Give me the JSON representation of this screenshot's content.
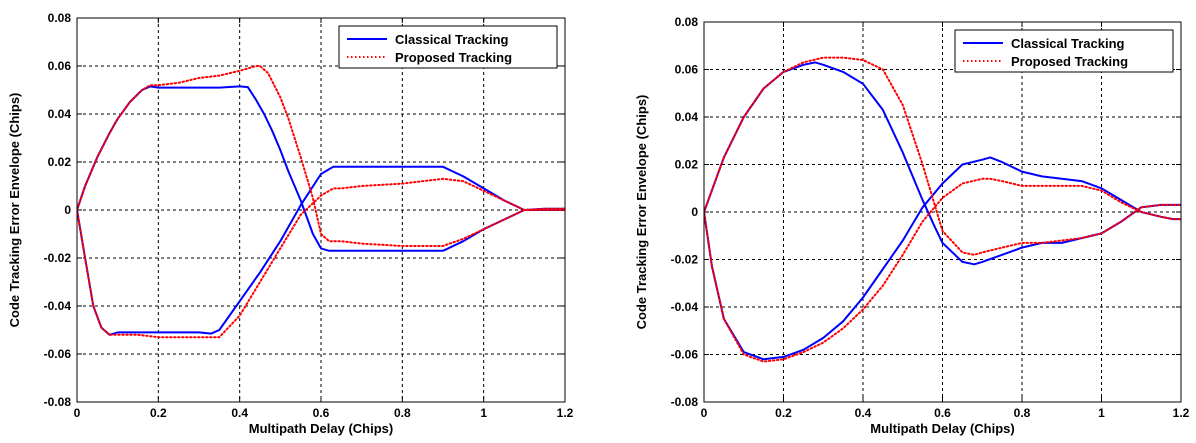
{
  "chart_data": [
    {
      "type": "line",
      "title": "",
      "xlabel": "Multipath Delay (Chips)",
      "ylabel": "Code Tracking Error Envelope (Chips)",
      "xlim": [
        0,
        1.2
      ],
      "ylim": [
        -0.08,
        0.08
      ],
      "xticks": [
        0,
        0.2,
        0.4,
        0.6,
        0.8,
        1,
        1.2
      ],
      "yticks": [
        -0.08,
        -0.06,
        -0.04,
        -0.02,
        0,
        0.02,
        0.04,
        0.06,
        0.08
      ],
      "xtick_labels": [
        "0",
        "0.2",
        "0.4",
        "0.6",
        "0.8",
        "1",
        "1.2"
      ],
      "ytick_labels": [
        "-0.08",
        "-0.06",
        "-0.04",
        "-0.02",
        "0",
        "0.02",
        "0.04",
        "0.06",
        "0.08"
      ],
      "grid": true,
      "legend_position": "top-right",
      "legend": [
        "Classical Tracking",
        "Proposed Tracking"
      ],
      "series": [
        {
          "name": "Classical Tracking",
          "color": "#0000ff",
          "style": "solid",
          "envelope": "upper",
          "x": [
            0,
            0.02,
            0.05,
            0.08,
            0.1,
            0.13,
            0.16,
            0.18,
            0.2,
            0.25,
            0.3,
            0.35,
            0.4,
            0.42,
            0.44,
            0.46,
            0.48,
            0.5,
            0.52,
            0.55,
            0.58,
            0.6,
            0.62,
            0.65,
            0.7,
            0.8,
            0.9,
            0.95,
            1,
            1.05,
            1.1,
            1.15,
            1.2
          ],
          "y": [
            0,
            0.01,
            0.022,
            0.032,
            0.038,
            0.045,
            0.05,
            0.0515,
            0.051,
            0.051,
            0.051,
            0.051,
            0.0515,
            0.0512,
            0.046,
            0.04,
            0.033,
            0.025,
            0.016,
            0.004,
            -0.01,
            -0.016,
            -0.017,
            -0.017,
            -0.017,
            -0.017,
            -0.017,
            -0.013,
            -0.008,
            -0.004,
            0,
            0.0005,
            0.0005
          ]
        },
        {
          "name": "Classical Tracking",
          "color": "#0000ff",
          "style": "solid",
          "envelope": "lower",
          "x": [
            0,
            0.02,
            0.04,
            0.06,
            0.08,
            0.1,
            0.15,
            0.2,
            0.25,
            0.3,
            0.33,
            0.35,
            0.4,
            0.45,
            0.5,
            0.55,
            0.6,
            0.63,
            0.65,
            0.7,
            0.8,
            0.9,
            0.95,
            1,
            1.05,
            1.1,
            1.15,
            1.2
          ],
          "y": [
            0,
            -0.02,
            -0.04,
            -0.049,
            -0.052,
            -0.051,
            -0.051,
            -0.051,
            -0.051,
            -0.051,
            -0.0515,
            -0.05,
            -0.038,
            -0.026,
            -0.013,
            0.002,
            0.015,
            0.018,
            0.018,
            0.018,
            0.018,
            0.018,
            0.014,
            0.009,
            0.004,
            0,
            0,
            0
          ]
        },
        {
          "name": "Proposed Tracking",
          "color": "#ff0000",
          "style": "dotted",
          "envelope": "upper",
          "x": [
            0,
            0.02,
            0.05,
            0.08,
            0.1,
            0.13,
            0.16,
            0.18,
            0.2,
            0.25,
            0.3,
            0.35,
            0.4,
            0.42,
            0.44,
            0.45,
            0.47,
            0.5,
            0.52,
            0.55,
            0.58,
            0.6,
            0.62,
            0.65,
            0.7,
            0.8,
            0.9,
            0.95,
            1,
            1.05,
            1.1,
            1.15,
            1.2
          ],
          "y": [
            0,
            0.01,
            0.022,
            0.032,
            0.038,
            0.045,
            0.05,
            0.052,
            0.052,
            0.053,
            0.055,
            0.056,
            0.058,
            0.059,
            0.06,
            0.06,
            0.057,
            0.047,
            0.038,
            0.022,
            0.005,
            -0.01,
            -0.013,
            -0.013,
            -0.014,
            -0.015,
            -0.015,
            -0.012,
            -0.008,
            -0.004,
            0,
            0.0005,
            0.0005
          ]
        },
        {
          "name": "Proposed Tracking",
          "color": "#ff0000",
          "style": "dotted",
          "envelope": "lower",
          "x": [
            0,
            0.02,
            0.04,
            0.06,
            0.08,
            0.1,
            0.15,
            0.2,
            0.25,
            0.3,
            0.35,
            0.4,
            0.45,
            0.5,
            0.55,
            0.6,
            0.63,
            0.65,
            0.7,
            0.8,
            0.9,
            0.95,
            1,
            1.05,
            1.1,
            1.15,
            1.2
          ],
          "y": [
            0,
            -0.02,
            -0.04,
            -0.049,
            -0.052,
            -0.052,
            -0.052,
            -0.053,
            -0.053,
            -0.053,
            -0.053,
            -0.044,
            -0.03,
            -0.016,
            -0.002,
            0.006,
            0.009,
            0.009,
            0.01,
            0.011,
            0.013,
            0.012,
            0.008,
            0.004,
            0,
            0,
            0
          ]
        }
      ]
    },
    {
      "type": "line",
      "title": "",
      "xlabel": "Multipath Delay (Chips)",
      "ylabel": "Code Tracking Error Envelope (Chips)",
      "xlim": [
        0,
        1.2
      ],
      "ylim": [
        -0.08,
        0.08
      ],
      "xticks": [
        0,
        0.2,
        0.4,
        0.6,
        0.8,
        1,
        1.2
      ],
      "yticks": [
        -0.08,
        -0.06,
        -0.04,
        -0.02,
        0,
        0.02,
        0.04,
        0.06,
        0.08
      ],
      "xtick_labels": [
        "0",
        "0.2",
        "0.4",
        "0.6",
        "0.8",
        "1",
        "1.2"
      ],
      "ytick_labels": [
        "-0.08",
        "-0.06",
        "-0.04",
        "-0.02",
        "0",
        "0.02",
        "0.04",
        "0.06",
        "0.08"
      ],
      "grid": true,
      "legend_position": "top-right",
      "legend": [
        "Classical Tracking",
        "Proposed Tracking"
      ],
      "series": [
        {
          "name": "Classical Tracking",
          "color": "#0000ff",
          "style": "solid",
          "envelope": "upper",
          "x": [
            0,
            0.05,
            0.1,
            0.15,
            0.2,
            0.25,
            0.28,
            0.3,
            0.35,
            0.4,
            0.45,
            0.5,
            0.55,
            0.58,
            0.6,
            0.65,
            0.68,
            0.7,
            0.75,
            0.8,
            0.85,
            0.9,
            0.95,
            1,
            1.05,
            1.1,
            1.15,
            1.2
          ],
          "y": [
            0,
            0.023,
            0.04,
            0.052,
            0.059,
            0.062,
            0.063,
            0.062,
            0.059,
            0.054,
            0.043,
            0.025,
            0.005,
            -0.006,
            -0.013,
            -0.021,
            -0.022,
            -0.021,
            -0.018,
            -0.015,
            -0.013,
            -0.013,
            -0.011,
            -0.009,
            -0.004,
            0.002,
            0.003,
            0.003
          ]
        },
        {
          "name": "Classical Tracking",
          "color": "#0000ff",
          "style": "solid",
          "envelope": "lower",
          "x": [
            0,
            0.02,
            0.05,
            0.1,
            0.15,
            0.2,
            0.25,
            0.3,
            0.35,
            0.4,
            0.45,
            0.5,
            0.55,
            0.6,
            0.65,
            0.7,
            0.72,
            0.75,
            0.8,
            0.85,
            0.9,
            0.95,
            1,
            1.05,
            1.1,
            1.15,
            1.18,
            1.2
          ],
          "y": [
            0,
            -0.023,
            -0.045,
            -0.059,
            -0.062,
            -0.061,
            -0.058,
            -0.053,
            -0.046,
            -0.036,
            -0.024,
            -0.012,
            0.002,
            0.012,
            0.02,
            0.022,
            0.023,
            0.021,
            0.017,
            0.015,
            0.014,
            0.013,
            0.01,
            0.005,
            0,
            -0.002,
            -0.003,
            -0.003
          ]
        },
        {
          "name": "Proposed Tracking",
          "color": "#ff0000",
          "style": "dotted",
          "envelope": "upper",
          "x": [
            0,
            0.05,
            0.1,
            0.15,
            0.2,
            0.25,
            0.3,
            0.35,
            0.4,
            0.45,
            0.5,
            0.55,
            0.6,
            0.65,
            0.68,
            0.7,
            0.75,
            0.8,
            0.85,
            0.9,
            0.95,
            1,
            1.05,
            1.1,
            1.15,
            1.2
          ],
          "y": [
            0,
            0.023,
            0.04,
            0.052,
            0.059,
            0.063,
            0.065,
            0.065,
            0.064,
            0.06,
            0.045,
            0.02,
            -0.008,
            -0.017,
            -0.018,
            -0.017,
            -0.015,
            -0.013,
            -0.013,
            -0.012,
            -0.011,
            -0.009,
            -0.004,
            0.002,
            0.003,
            0.003
          ]
        },
        {
          "name": "Proposed Tracking",
          "color": "#ff0000",
          "style": "dotted",
          "envelope": "lower",
          "x": [
            0,
            0.02,
            0.05,
            0.1,
            0.15,
            0.2,
            0.25,
            0.3,
            0.35,
            0.4,
            0.45,
            0.5,
            0.55,
            0.6,
            0.65,
            0.7,
            0.72,
            0.75,
            0.8,
            0.85,
            0.9,
            0.95,
            1,
            1.05,
            1.1,
            1.15,
            1.18,
            1.2
          ],
          "y": [
            0,
            -0.023,
            -0.045,
            -0.06,
            -0.063,
            -0.062,
            -0.059,
            -0.055,
            -0.049,
            -0.041,
            -0.031,
            -0.018,
            -0.004,
            0.006,
            0.012,
            0.014,
            0.014,
            0.013,
            0.011,
            0.011,
            0.011,
            0.011,
            0.009,
            0.004,
            0,
            -0.002,
            -0.003,
            -0.003
          ]
        }
      ]
    }
  ]
}
